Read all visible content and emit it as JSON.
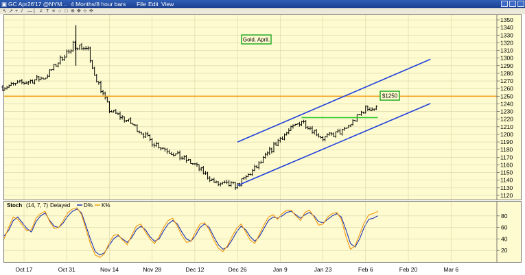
{
  "window": {
    "title": "GC Apr26'17 @NYM...",
    "timeframe": "4 Months/8 hour bars",
    "menu": [
      "File",
      "Edit",
      "View"
    ]
  },
  "price_label": "$1250",
  "annotation": "Gold. April.",
  "stoch": {
    "label": "Stoch",
    "params": "(14, 7, 7)",
    "mode": "Delayed",
    "d_label": "D%",
    "k_label": "K%",
    "y_ticks": [
      20,
      40,
      60,
      80
    ]
  },
  "colors": {
    "background": "#fdfbcf",
    "channel": "#1f3fdc",
    "horizontal_line": "#f5a11e",
    "breakout_line": "#2ecc2e",
    "d_line": "#1a2fb0",
    "k_line": "#f2960c",
    "label_border": "#22aa22"
  },
  "chart_data": [
    {
      "type": "bar",
      "subtype": "ohlc",
      "title": "",
      "ylim": [
        1115,
        1355
      ],
      "y_ticks": [
        1120,
        1130,
        1140,
        1150,
        1160,
        1170,
        1180,
        1190,
        1200,
        1210,
        1220,
        1230,
        1240,
        1250,
        1260,
        1270,
        1280,
        1290,
        1300,
        1310,
        1320,
        1330,
        1340,
        1350
      ],
      "x_ticks": [
        "Oct 17",
        "Oct 31",
        "Nov 14",
        "Nov 28",
        "Dec 12",
        "Dec 26",
        "Jan 9",
        "Jan 23",
        "Feb 6",
        "Feb 20",
        "Mar 6"
      ],
      "series_close_by_week": {
        "name": "",
        "dates": [
          "Oct 10",
          "Oct 17",
          "Oct 24",
          "Oct 31",
          "Nov 7",
          "Nov 14",
          "Nov 21",
          "Nov 28",
          "Dec 5",
          "Dec 12",
          "Dec 19",
          "Dec 26",
          "Jan 2",
          "Jan 9",
          "Jan 16",
          "Jan 23",
          "Jan 30",
          "Feb 6"
        ],
        "values": [
          1262,
          1268,
          1275,
          1308,
          1300,
          1232,
          1215,
          1190,
          1175,
          1160,
          1135,
          1133,
          1160,
          1195,
          1218,
          1195,
          1205,
          1234
        ]
      },
      "horizontal_line": {
        "value": 1250,
        "label": "$1250"
      },
      "breakout_line": {
        "value": 1222,
        "from": "Jan 16",
        "to": "Feb 10"
      },
      "channel_upper": {
        "from": [
          "Dec 26",
          1190
        ],
        "to": [
          "Mar 6",
          1310
        ]
      },
      "channel_lower": {
        "from": [
          "Dec 26",
          1133
        ],
        "to": [
          "Mar 6",
          1252
        ]
      }
    },
    {
      "type": "line",
      "title": "",
      "ylim": [
        0,
        100
      ],
      "y_ticks": [
        20,
        40,
        60,
        80
      ],
      "x_ticks": [
        "Oct 17",
        "Oct 31",
        "Nov 14",
        "Nov 28",
        "Dec 12",
        "Dec 26",
        "Jan 9",
        "Jan 23",
        "Feb 6",
        "Feb 20",
        "Mar 6"
      ],
      "series": [
        {
          "name": "D%",
          "values": [
            45,
            55,
            72,
            78,
            68,
            58,
            52,
            70,
            80,
            85,
            72,
            62,
            60,
            68,
            80,
            88,
            92,
            85,
            62,
            38,
            18,
            12,
            16,
            28,
            40,
            46,
            40,
            34,
            42,
            56,
            62,
            56,
            44,
            36,
            40,
            54,
            66,
            72,
            66,
            52,
            40,
            36,
            46,
            60,
            66,
            60,
            44,
            30,
            22,
            26,
            38,
            52,
            62,
            56,
            44,
            36,
            44,
            58,
            72,
            78,
            76,
            80,
            86,
            88,
            82,
            76,
            82,
            86,
            80,
            70,
            68,
            74,
            80,
            84,
            78,
            56,
            32,
            26,
            40,
            60,
            74,
            76,
            80
          ]
        },
        {
          "name": "K%",
          "values": [
            40,
            60,
            78,
            74,
            64,
            54,
            56,
            76,
            84,
            88,
            70,
            58,
            60,
            72,
            86,
            92,
            94,
            82,
            56,
            30,
            12,
            8,
            14,
            32,
            46,
            48,
            38,
            30,
            46,
            62,
            66,
            52,
            40,
            32,
            44,
            60,
            72,
            76,
            62,
            46,
            34,
            36,
            52,
            66,
            68,
            56,
            38,
            24,
            18,
            28,
            44,
            58,
            66,
            52,
            38,
            32,
            48,
            64,
            78,
            82,
            74,
            84,
            90,
            90,
            80,
            72,
            86,
            90,
            78,
            64,
            66,
            78,
            84,
            86,
            74,
            44,
            22,
            28,
            48,
            68,
            82,
            84,
            88
          ]
        }
      ]
    }
  ]
}
